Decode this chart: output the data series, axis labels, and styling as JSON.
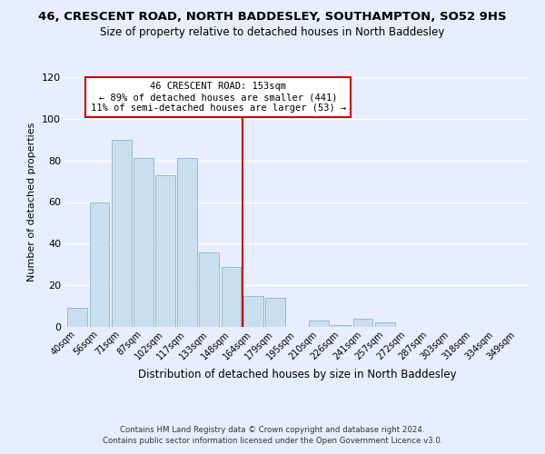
{
  "title": "46, CRESCENT ROAD, NORTH BADDESLEY, SOUTHAMPTON, SO52 9HS",
  "subtitle": "Size of property relative to detached houses in North Baddesley",
  "xlabel": "Distribution of detached houses by size in North Baddesley",
  "ylabel": "Number of detached properties",
  "bar_labels": [
    "40sqm",
    "56sqm",
    "71sqm",
    "87sqm",
    "102sqm",
    "117sqm",
    "133sqm",
    "148sqm",
    "164sqm",
    "179sqm",
    "195sqm",
    "210sqm",
    "226sqm",
    "241sqm",
    "257sqm",
    "272sqm",
    "287sqm",
    "303sqm",
    "318sqm",
    "334sqm",
    "349sqm"
  ],
  "bar_values": [
    9,
    60,
    90,
    81,
    73,
    81,
    36,
    29,
    15,
    14,
    0,
    3,
    1,
    4,
    2,
    0,
    0,
    0,
    0,
    0,
    0
  ],
  "bar_color": "#c9dff0",
  "bar_edge_color": "#8ab4cf",
  "vline_color": "#cc0000",
  "annotation_title": "46 CRESCENT ROAD: 153sqm",
  "annotation_line1": "← 89% of detached houses are smaller (441)",
  "annotation_line2": "11% of semi-detached houses are larger (53) →",
  "annotation_box_color": "#ffffff",
  "annotation_box_edge": "#cc0000",
  "ylim": [
    0,
    120
  ],
  "yticks": [
    0,
    20,
    40,
    60,
    80,
    100,
    120
  ],
  "footer1": "Contains HM Land Registry data © Crown copyright and database right 2024.",
  "footer2": "Contains public sector information licensed under the Open Government Licence v3.0.",
  "bg_color": "#e8eeff",
  "grid_color": "#ffffff"
}
